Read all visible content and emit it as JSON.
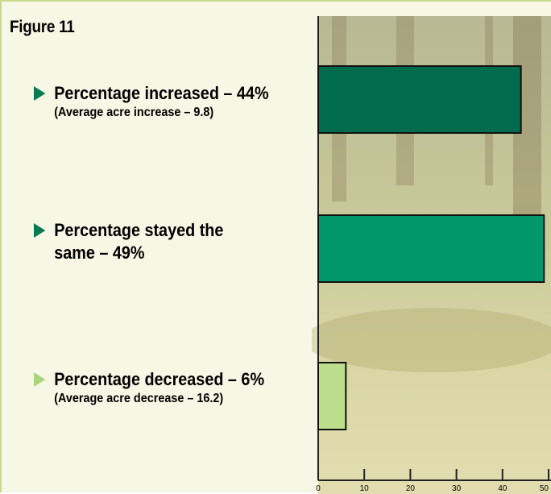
{
  "figure_title": "Figure 11",
  "items": [
    {
      "main": "Percentage increased – 44%",
      "sub": "(Average acre increase – 9.8)"
    },
    {
      "main": "Percentage stayed the same – 49%",
      "sub": ""
    },
    {
      "main": "Percentage decreased – 6%",
      "sub": "(Average acre decrease – 16.2)"
    }
  ],
  "colors": {
    "increased": "#006b4d",
    "same": "#00976a",
    "decreased": "#bcdd8b",
    "arrow_dark": "#0a7a55",
    "arrow_light": "#a9d67a"
  },
  "chart_data": {
    "type": "bar",
    "orientation": "horizontal",
    "categories": [
      "Percentage increased",
      "Percentage stayed the same",
      "Percentage decreased"
    ],
    "values": [
      44,
      49,
      6
    ],
    "xlim": [
      0,
      50
    ],
    "xticks": [
      "0",
      "10",
      "20",
      "30",
      "40",
      "50"
    ],
    "grid": false
  }
}
